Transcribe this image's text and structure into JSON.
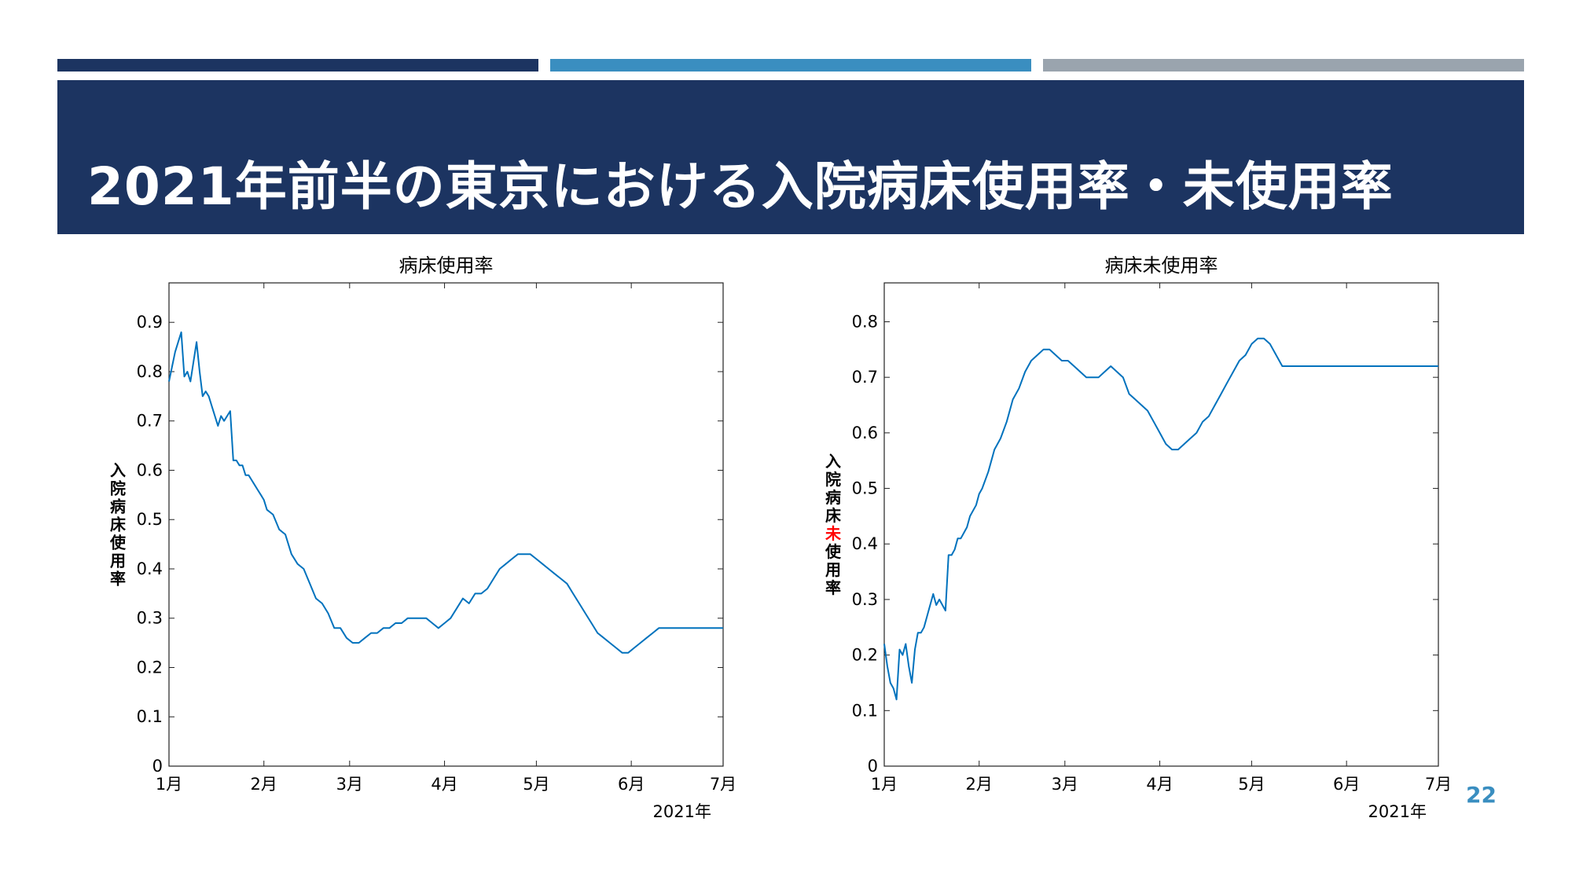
{
  "slide": {
    "title": "2021年前半の東京における入院病床使用率・未使用率",
    "page_number": "22",
    "colors": {
      "header_bg": "#1c3461",
      "accent_blue": "#3a8ec0",
      "accent_gray": "#9aa4ae",
      "line": "#0072bd",
      "highlight": "#ff0000"
    }
  },
  "chart_data": [
    {
      "type": "line",
      "title": "病床使用率",
      "ylabel": "入院病床使用率",
      "xlabel": "2021年",
      "ylim": [
        0,
        0.98
      ],
      "yticks": [
        0,
        0.1,
        0.2,
        0.3,
        0.4,
        0.5,
        0.6,
        0.7,
        0.8,
        0.9
      ],
      "ytick_labels": [
        "0",
        "0.1",
        "0.2",
        "0.3",
        "0.4",
        "0.5",
        "0.6",
        "0.7",
        "0.8",
        "0.9"
      ],
      "xlim": [
        0,
        181
      ],
      "xticks": [
        0,
        31,
        59,
        90,
        120,
        151,
        181
      ],
      "xtick_labels": [
        "1月",
        "2月",
        "3月",
        "4月",
        "5月",
        "6月",
        "7月"
      ],
      "series": [
        {
          "color": "#0072bd",
          "x": [
            0,
            2,
            3,
            4,
            5,
            6,
            7,
            8,
            9,
            10,
            11,
            12,
            13,
            14,
            15,
            16,
            17,
            18,
            19,
            20,
            21,
            22,
            23,
            24,
            25,
            26,
            27,
            28,
            29,
            30,
            31,
            32,
            34,
            36,
            38,
            40,
            42,
            44,
            46,
            48,
            50,
            52,
            54,
            56,
            58,
            60,
            62,
            64,
            66,
            68,
            70,
            72,
            74,
            76,
            78,
            80,
            82,
            84,
            86,
            88,
            90,
            92,
            94,
            96,
            98,
            100,
            102,
            104,
            106,
            108,
            110,
            112,
            114,
            116,
            118,
            120,
            122,
            124,
            126,
            128,
            130,
            132,
            134,
            136,
            138,
            140,
            142,
            144,
            146,
            148,
            150,
            152,
            154,
            156,
            158,
            160,
            162,
            164,
            166,
            168,
            170,
            172,
            174,
            176,
            178,
            181
          ],
          "values": [
            0.78,
            0.84,
            0.86,
            0.88,
            0.79,
            0.8,
            0.78,
            0.82,
            0.86,
            0.8,
            0.75,
            0.76,
            0.75,
            0.73,
            0.71,
            0.69,
            0.71,
            0.7,
            0.71,
            0.72,
            0.62,
            0.62,
            0.61,
            0.61,
            0.59,
            0.59,
            0.58,
            0.57,
            0.56,
            0.55,
            0.54,
            0.52,
            0.51,
            0.48,
            0.47,
            0.43,
            0.41,
            0.4,
            0.37,
            0.34,
            0.33,
            0.31,
            0.28,
            0.28,
            0.26,
            0.25,
            0.25,
            0.26,
            0.27,
            0.27,
            0.28,
            0.28,
            0.29,
            0.29,
            0.3,
            0.3,
            0.3,
            0.3,
            0.29,
            0.28,
            0.29,
            0.3,
            0.32,
            0.34,
            0.33,
            0.35,
            0.35,
            0.36,
            0.38,
            0.4,
            0.41,
            0.42,
            0.43,
            0.43,
            0.43,
            0.42,
            0.41,
            0.4,
            0.39,
            0.38,
            0.37,
            0.35,
            0.33,
            0.31,
            0.29,
            0.27,
            0.26,
            0.25,
            0.24,
            0.23,
            0.23,
            0.24,
            0.25,
            0.26,
            0.27,
            0.28,
            0.28,
            0.28,
            0.28,
            0.28,
            0.28,
            0.28,
            0.28,
            0.28,
            0.28,
            0.28
          ]
        }
      ]
    },
    {
      "type": "line",
      "title": "病床未使用率",
      "ylabel": "入院病床未使用率",
      "ylabel_highlight": "未",
      "xlabel": "2021年",
      "ylim": [
        0,
        0.87
      ],
      "yticks": [
        0,
        0.1,
        0.2,
        0.3,
        0.4,
        0.5,
        0.6,
        0.7,
        0.8
      ],
      "ytick_labels": [
        "0",
        "0.1",
        "0.2",
        "0.3",
        "0.4",
        "0.5",
        "0.6",
        "0.7",
        "0.8"
      ],
      "xlim": [
        0,
        181
      ],
      "xticks": [
        0,
        31,
        59,
        90,
        120,
        151,
        181
      ],
      "xtick_labels": [
        "1月",
        "2月",
        "3月",
        "4月",
        "5月",
        "6月",
        "7月"
      ],
      "series": [
        {
          "color": "#0072bd",
          "x": [
            0,
            1,
            2,
            3,
            4,
            5,
            6,
            7,
            8,
            9,
            10,
            11,
            12,
            13,
            14,
            15,
            16,
            17,
            18,
            19,
            20,
            21,
            22,
            23,
            24,
            25,
            26,
            27,
            28,
            29,
            30,
            31,
            32,
            34,
            36,
            38,
            40,
            42,
            44,
            46,
            48,
            50,
            52,
            54,
            56,
            58,
            60,
            62,
            64,
            66,
            68,
            70,
            72,
            74,
            76,
            78,
            80,
            82,
            84,
            86,
            88,
            90,
            92,
            94,
            96,
            98,
            100,
            102,
            104,
            106,
            108,
            110,
            112,
            114,
            116,
            118,
            120,
            122,
            124,
            126,
            128,
            130,
            132,
            134,
            136,
            138,
            140,
            142,
            144,
            146,
            148,
            150,
            152,
            154,
            156,
            158,
            160,
            162,
            164,
            166,
            168,
            170,
            172,
            174,
            176,
            178,
            181
          ],
          "values": [
            0.22,
            0.18,
            0.15,
            0.14,
            0.12,
            0.21,
            0.2,
            0.22,
            0.18,
            0.15,
            0.21,
            0.24,
            0.24,
            0.25,
            0.27,
            0.29,
            0.31,
            0.29,
            0.3,
            0.29,
            0.28,
            0.38,
            0.38,
            0.39,
            0.41,
            0.41,
            0.42,
            0.43,
            0.45,
            0.46,
            0.47,
            0.49,
            0.5,
            0.53,
            0.57,
            0.59,
            0.62,
            0.66,
            0.68,
            0.71,
            0.73,
            0.74,
            0.75,
            0.75,
            0.74,
            0.73,
            0.73,
            0.72,
            0.71,
            0.7,
            0.7,
            0.7,
            0.71,
            0.72,
            0.71,
            0.7,
            0.67,
            0.66,
            0.65,
            0.64,
            0.62,
            0.6,
            0.58,
            0.57,
            0.57,
            0.58,
            0.59,
            0.6,
            0.62,
            0.63,
            0.65,
            0.67,
            0.69,
            0.71,
            0.73,
            0.74,
            0.76,
            0.77,
            0.77,
            0.76,
            0.74,
            0.72,
            0.72,
            0.72,
            0.72,
            0.72,
            0.72,
            0.72,
            0.72,
            0.72,
            0.72,
            0.72,
            0.72,
            0.72,
            0.72,
            0.72,
            0.72,
            0.72,
            0.72,
            0.72,
            0.72,
            0.72,
            0.72,
            0.72,
            0.72,
            0.72,
            0.72
          ]
        }
      ]
    }
  ]
}
